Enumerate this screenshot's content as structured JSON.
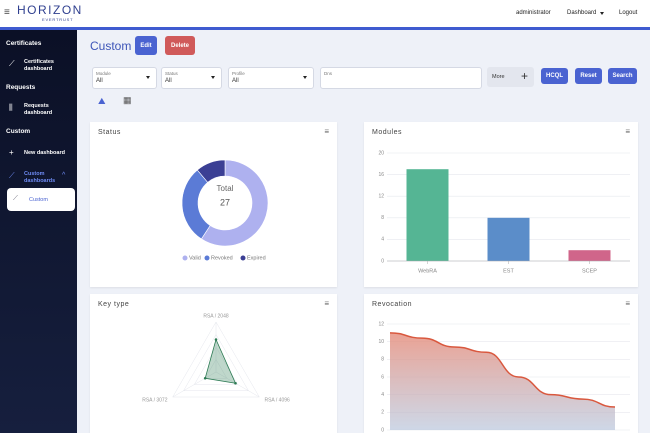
{
  "header": {
    "logo": "HORIZON",
    "logo_sub": "EVERTRUST",
    "user": "administrator",
    "menu": "Dashboard",
    "logout": "Logout"
  },
  "sidebar": {
    "sections": [
      {
        "title": "Certificates",
        "items": [
          "Certificates dashboard"
        ]
      },
      {
        "title": "Requests",
        "items": [
          "Requests dashboard"
        ]
      },
      {
        "title": "Custom",
        "items": [
          "New dashboard",
          "Custom dashboards"
        ],
        "subitems": [
          "Custom"
        ]
      }
    ]
  },
  "toolbar": {
    "title": "Custom",
    "edit": "Edit",
    "delete": "Delete"
  },
  "filters": [
    {
      "label": "Module",
      "value": "All"
    },
    {
      "label": "Status",
      "value": "All"
    },
    {
      "label": "Profile",
      "value": "All"
    },
    {
      "label": "Dns"
    }
  ],
  "actions": {
    "more": "More",
    "hcql": "HCQL",
    "reset": "Reset",
    "search": "Search"
  },
  "panels": [
    {
      "title": "Status",
      "chart_data": {
        "type": "donut",
        "categories": [
          "Valid",
          "Revoked",
          "Expired"
        ],
        "values": [
          16,
          8,
          3
        ],
        "colors": [
          "#aeb1ef",
          "#5b7bd6",
          "#3b3f94"
        ],
        "center_label": "Total",
        "center_value": 27
      }
    },
    {
      "title": "Modules",
      "chart_data": {
        "type": "bar",
        "categories": [
          "WebRA",
          "EST",
          "SCEP"
        ],
        "values": [
          17,
          8,
          2
        ],
        "colors": [
          "#55b594",
          "#5b8dc9",
          "#d0658a"
        ],
        "ylim": [
          0,
          20
        ],
        "yticks": [
          0,
          4,
          8,
          12,
          16,
          20
        ],
        "grid": true
      }
    },
    {
      "title": "Key type",
      "chart_data": {
        "type": "radar",
        "categories": [
          "RSA / 2048",
          "RSA / 4096",
          "RSA / 3072"
        ],
        "values": [
          13,
          9,
          5
        ],
        "rlim": [
          0,
          20
        ],
        "color": "#2c7a53"
      }
    },
    {
      "title": "Revocation",
      "chart_data": {
        "type": "area",
        "values": [
          11,
          10.4,
          9.4,
          8.8,
          6,
          4,
          3.5,
          2.6
        ],
        "ylim": [
          0,
          12
        ],
        "yticks": [
          0,
          2,
          4,
          6,
          8,
          10,
          12
        ],
        "color": "#d9583e",
        "grid": true
      }
    }
  ]
}
